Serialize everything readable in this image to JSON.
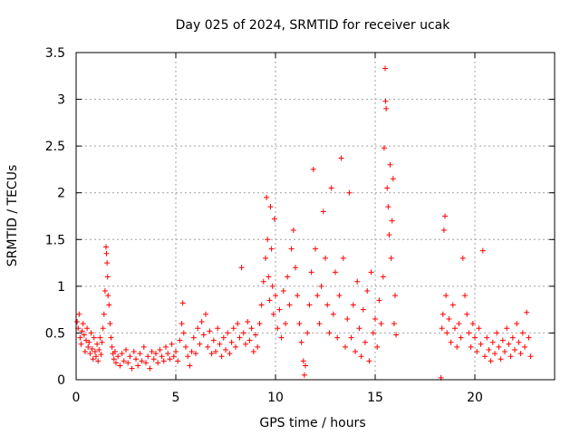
{
  "chart_data": {
    "type": "scatter",
    "title": "Day 025 of 2024, SRMTID for receiver ucak",
    "xlabel": "GPS time / hours",
    "ylabel": "SRMTID / TECUs",
    "xlim": [
      0,
      24
    ],
    "ylim": [
      0,
      3.5
    ],
    "xticks": [
      0,
      5,
      10,
      15,
      20
    ],
    "xtick_labels": [
      "0",
      "5",
      "10",
      "15",
      "20"
    ],
    "yticks": [
      0,
      0.5,
      1,
      1.5,
      2,
      2.5,
      3,
      3.5
    ],
    "ytick_labels": [
      "0",
      "0.5",
      "1",
      "1.5",
      "2",
      "2.5",
      "3",
      "3.5"
    ],
    "grid": true,
    "marker": "plus",
    "color": "#ff0000",
    "series": [
      {
        "name": "SRMTID",
        "points": [
          [
            0.05,
            0.62
          ],
          [
            0.1,
            0.55
          ],
          [
            0.15,
            0.7
          ],
          [
            0.2,
            0.45
          ],
          [
            0.25,
            0.38
          ],
          [
            0.3,
            0.52
          ],
          [
            0.35,
            0.6
          ],
          [
            0.4,
            0.48
          ],
          [
            0.45,
            0.3
          ],
          [
            0.5,
            0.42
          ],
          [
            0.55,
            0.55
          ],
          [
            0.6,
            0.35
          ],
          [
            0.65,
            0.4
          ],
          [
            0.7,
            0.28
          ],
          [
            0.75,
            0.5
          ],
          [
            0.8,
            0.33
          ],
          [
            0.85,
            0.22
          ],
          [
            0.9,
            0.45
          ],
          [
            0.95,
            0.3
          ],
          [
            1.0,
            0.25
          ],
          [
            1.05,
            0.38
          ],
          [
            1.1,
            0.2
          ],
          [
            1.15,
            0.32
          ],
          [
            1.2,
            0.45
          ],
          [
            1.25,
            0.27
          ],
          [
            1.3,
            0.4
          ],
          [
            1.35,
            0.55
          ],
          [
            1.4,
            0.7
          ],
          [
            1.45,
            0.95
          ],
          [
            1.5,
            1.42
          ],
          [
            1.52,
            1.35
          ],
          [
            1.55,
            1.25
          ],
          [
            1.58,
            1.1
          ],
          [
            1.6,
            0.9
          ],
          [
            1.65,
            0.8
          ],
          [
            1.7,
            0.6
          ],
          [
            1.75,
            0.45
          ],
          [
            1.8,
            0.35
          ],
          [
            1.85,
            0.28
          ],
          [
            1.9,
            0.22
          ],
          [
            1.95,
            0.3
          ],
          [
            2.0,
            0.18
          ],
          [
            2.1,
            0.25
          ],
          [
            2.2,
            0.15
          ],
          [
            2.3,
            0.28
          ],
          [
            2.4,
            0.2
          ],
          [
            2.5,
            0.32
          ],
          [
            2.6,
            0.18
          ],
          [
            2.7,
            0.25
          ],
          [
            2.8,
            0.12
          ],
          [
            2.9,
            0.3
          ],
          [
            3.0,
            0.22
          ],
          [
            3.1,
            0.15
          ],
          [
            3.2,
            0.28
          ],
          [
            3.3,
            0.2
          ],
          [
            3.4,
            0.35
          ],
          [
            3.5,
            0.18
          ],
          [
            3.6,
            0.25
          ],
          [
            3.7,
            0.12
          ],
          [
            3.8,
            0.3
          ],
          [
            3.9,
            0.22
          ],
          [
            4.0,
            0.28
          ],
          [
            4.1,
            0.18
          ],
          [
            4.2,
            0.32
          ],
          [
            4.3,
            0.25
          ],
          [
            4.4,
            0.2
          ],
          [
            4.5,
            0.35
          ],
          [
            4.6,
            0.28
          ],
          [
            4.7,
            0.22
          ],
          [
            4.8,
            0.38
          ],
          [
            4.9,
            0.25
          ],
          [
            5.0,
            0.3
          ],
          [
            5.1,
            0.2
          ],
          [
            5.2,
            0.42
          ],
          [
            5.3,
            0.6
          ],
          [
            5.35,
            0.82
          ],
          [
            5.4,
            0.5
          ],
          [
            5.5,
            0.35
          ],
          [
            5.6,
            0.25
          ],
          [
            5.7,
            0.15
          ],
          [
            5.8,
            0.3
          ],
          [
            5.9,
            0.45
          ],
          [
            6.0,
            0.28
          ],
          [
            6.1,
            0.55
          ],
          [
            6.2,
            0.38
          ],
          [
            6.3,
            0.62
          ],
          [
            6.4,
            0.48
          ],
          [
            6.5,
            0.7
          ],
          [
            6.6,
            0.35
          ],
          [
            6.7,
            0.52
          ],
          [
            6.8,
            0.28
          ],
          [
            6.9,
            0.42
          ],
          [
            7.0,
            0.3
          ],
          [
            7.1,
            0.55
          ],
          [
            7.2,
            0.38
          ],
          [
            7.3,
            0.25
          ],
          [
            7.4,
            0.45
          ],
          [
            7.5,
            0.32
          ],
          [
            7.6,
            0.5
          ],
          [
            7.7,
            0.28
          ],
          [
            7.8,
            0.4
          ],
          [
            7.9,
            0.55
          ],
          [
            8.0,
            0.35
          ],
          [
            8.1,
            0.6
          ],
          [
            8.2,
            0.45
          ],
          [
            8.3,
            1.2
          ],
          [
            8.4,
            0.5
          ],
          [
            8.5,
            0.38
          ],
          [
            8.6,
            0.62
          ],
          [
            8.7,
            0.42
          ],
          [
            8.8,
            0.55
          ],
          [
            8.9,
            0.3
          ],
          [
            9.0,
            0.48
          ],
          [
            9.1,
            0.35
          ],
          [
            9.2,
            0.6
          ],
          [
            9.3,
            0.8
          ],
          [
            9.4,
            1.05
          ],
          [
            9.5,
            1.3
          ],
          [
            9.55,
            1.95
          ],
          [
            9.6,
            1.5
          ],
          [
            9.65,
            1.1
          ],
          [
            9.7,
            0.85
          ],
          [
            9.75,
            1.85
          ],
          [
            9.8,
            1.4
          ],
          [
            9.85,
            1.0
          ],
          [
            9.9,
            0.7
          ],
          [
            9.95,
            1.72
          ],
          [
            10.0,
            0.9
          ],
          [
            10.1,
            0.55
          ],
          [
            10.2,
            0.75
          ],
          [
            10.3,
            0.45
          ],
          [
            10.4,
            0.95
          ],
          [
            10.5,
            0.6
          ],
          [
            10.6,
            1.1
          ],
          [
            10.7,
            0.8
          ],
          [
            10.8,
            1.4
          ],
          [
            10.9,
            1.6
          ],
          [
            11.0,
            1.2
          ],
          [
            11.1,
            0.9
          ],
          [
            11.2,
            0.6
          ],
          [
            11.3,
            0.4
          ],
          [
            11.4,
            0.2
          ],
          [
            11.45,
            0.05
          ],
          [
            11.5,
            0.15
          ],
          [
            11.6,
            0.5
          ],
          [
            11.7,
            0.8
          ],
          [
            11.8,
            1.15
          ],
          [
            11.9,
            2.25
          ],
          [
            12.0,
            1.4
          ],
          [
            12.1,
            0.9
          ],
          [
            12.2,
            0.6
          ],
          [
            12.3,
            1.0
          ],
          [
            12.4,
            1.8
          ],
          [
            12.5,
            1.3
          ],
          [
            12.6,
            0.8
          ],
          [
            12.7,
            0.5
          ],
          [
            12.8,
            2.05
          ],
          [
            12.9,
            0.7
          ],
          [
            13.0,
            1.15
          ],
          [
            13.1,
            0.45
          ],
          [
            13.2,
            0.9
          ],
          [
            13.3,
            2.37
          ],
          [
            13.4,
            1.3
          ],
          [
            13.5,
            0.35
          ],
          [
            13.6,
            0.65
          ],
          [
            13.7,
            2.0
          ],
          [
            13.8,
            0.45
          ],
          [
            13.9,
            0.8
          ],
          [
            14.0,
            0.3
          ],
          [
            14.1,
            1.05
          ],
          [
            14.2,
            0.55
          ],
          [
            14.3,
            0.25
          ],
          [
            14.4,
            0.75
          ],
          [
            14.5,
            0.4
          ],
          [
            14.6,
            0.95
          ],
          [
            14.7,
            0.2
          ],
          [
            14.8,
            1.15
          ],
          [
            14.9,
            0.5
          ],
          [
            15.0,
            0.65
          ],
          [
            15.1,
            0.35
          ],
          [
            15.2,
            0.85
          ],
          [
            15.3,
            0.6
          ],
          [
            15.4,
            1.1
          ],
          [
            15.45,
            2.48
          ],
          [
            15.5,
            3.33
          ],
          [
            15.52,
            2.98
          ],
          [
            15.55,
            2.9
          ],
          [
            15.6,
            2.05
          ],
          [
            15.65,
            1.85
          ],
          [
            15.7,
            1.55
          ],
          [
            15.75,
            2.3
          ],
          [
            15.8,
            1.3
          ],
          [
            15.85,
            1.7
          ],
          [
            15.9,
            2.15
          ],
          [
            15.95,
            0.6
          ],
          [
            16.0,
            0.9
          ],
          [
            16.05,
            0.48
          ],
          [
            18.3,
            0.02
          ],
          [
            18.35,
            0.55
          ],
          [
            18.4,
            0.7
          ],
          [
            18.45,
            1.6
          ],
          [
            18.5,
            1.75
          ],
          [
            18.55,
            0.9
          ],
          [
            18.6,
            0.5
          ],
          [
            18.7,
            0.65
          ],
          [
            18.8,
            0.4
          ],
          [
            18.9,
            0.8
          ],
          [
            19.0,
            0.55
          ],
          [
            19.1,
            0.35
          ],
          [
            19.2,
            0.6
          ],
          [
            19.3,
            0.45
          ],
          [
            19.4,
            1.3
          ],
          [
            19.5,
            0.9
          ],
          [
            19.6,
            0.7
          ],
          [
            19.7,
            0.5
          ],
          [
            19.8,
            0.35
          ],
          [
            19.9,
            0.6
          ],
          [
            20.0,
            0.45
          ],
          [
            20.1,
            0.3
          ],
          [
            20.2,
            0.55
          ],
          [
            20.3,
            0.38
          ],
          [
            20.4,
            1.38
          ],
          [
            20.5,
            0.25
          ],
          [
            20.6,
            0.45
          ],
          [
            20.7,
            0.32
          ],
          [
            20.8,
            0.2
          ],
          [
            20.9,
            0.4
          ],
          [
            21.0,
            0.28
          ],
          [
            21.1,
            0.5
          ],
          [
            21.2,
            0.35
          ],
          [
            21.3,
            0.22
          ],
          [
            21.4,
            0.42
          ],
          [
            21.5,
            0.3
          ],
          [
            21.6,
            0.55
          ],
          [
            21.7,
            0.38
          ],
          [
            21.8,
            0.25
          ],
          [
            21.9,
            0.45
          ],
          [
            22.0,
            0.32
          ],
          [
            22.1,
            0.6
          ],
          [
            22.2,
            0.4
          ],
          [
            22.3,
            0.28
          ],
          [
            22.4,
            0.5
          ],
          [
            22.5,
            0.35
          ],
          [
            22.6,
            0.72
          ],
          [
            22.7,
            0.45
          ],
          [
            22.8,
            0.25
          ]
        ]
      }
    ]
  }
}
